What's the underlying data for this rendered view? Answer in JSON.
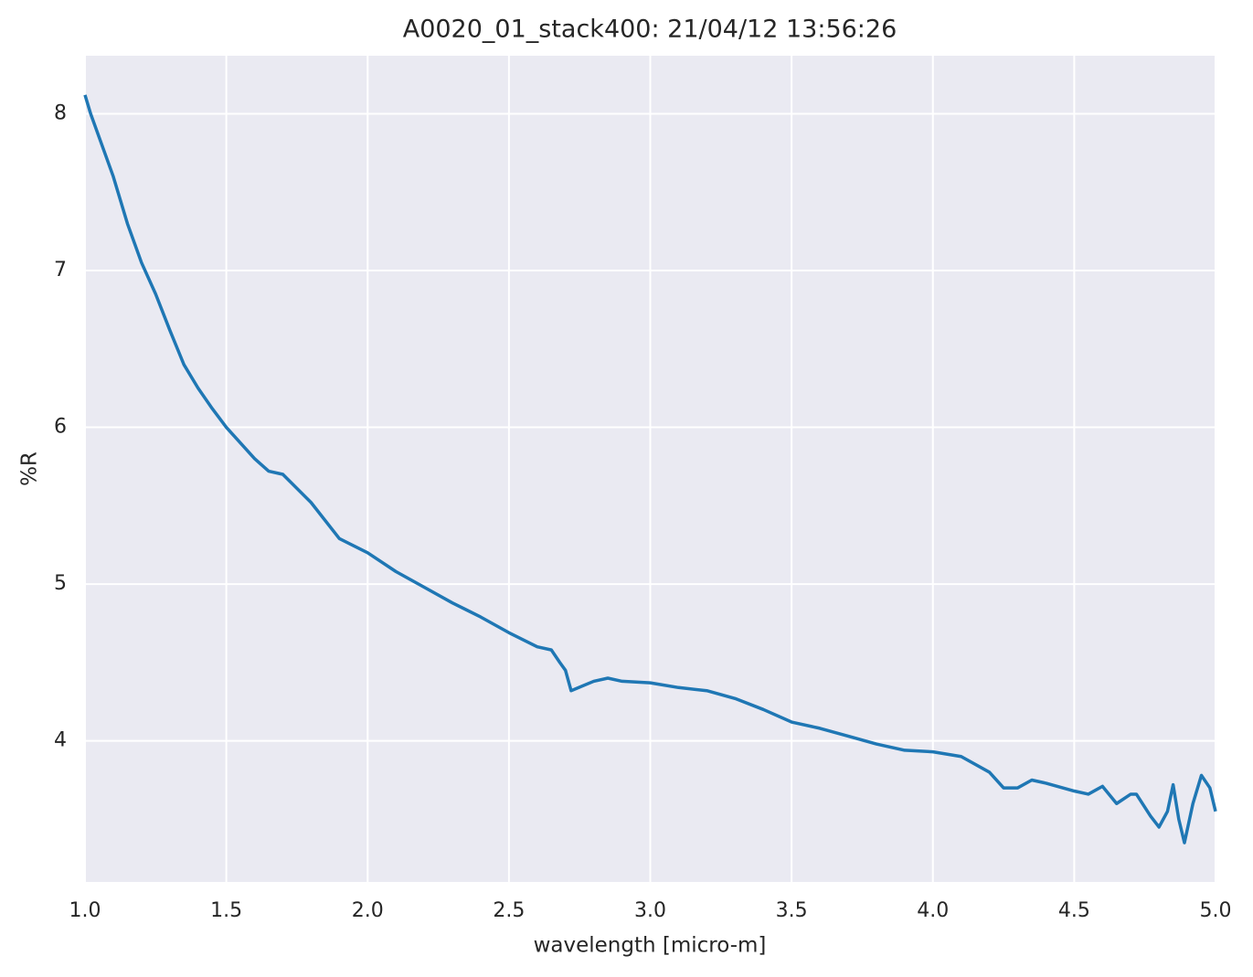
{
  "chart_data": {
    "type": "line",
    "title": "A0020_01_stack400:  21/04/12 13:56:26",
    "xlabel": "wavelength [micro-m]",
    "ylabel": "%R",
    "x": [
      1.0,
      1.02,
      1.05,
      1.1,
      1.15,
      1.2,
      1.25,
      1.3,
      1.35,
      1.4,
      1.45,
      1.5,
      1.6,
      1.65,
      1.7,
      1.8,
      1.9,
      2.0,
      2.1,
      2.2,
      2.3,
      2.4,
      2.5,
      2.6,
      2.65,
      2.68,
      2.7,
      2.72,
      2.8,
      2.85,
      2.9,
      3.0,
      3.1,
      3.2,
      3.3,
      3.4,
      3.5,
      3.6,
      3.7,
      3.8,
      3.9,
      4.0,
      4.1,
      4.2,
      4.25,
      4.3,
      4.35,
      4.4,
      4.5,
      4.55,
      4.6,
      4.65,
      4.7,
      4.72,
      4.77,
      4.8,
      4.83,
      4.85,
      4.87,
      4.89,
      4.92,
      4.95,
      4.98,
      5.0
    ],
    "values": [
      8.12,
      8.0,
      7.85,
      7.6,
      7.3,
      7.05,
      6.85,
      6.62,
      6.4,
      6.25,
      6.12,
      6.0,
      5.8,
      5.72,
      5.7,
      5.52,
      5.29,
      5.2,
      5.08,
      4.98,
      4.88,
      4.79,
      4.69,
      4.6,
      4.58,
      4.5,
      4.45,
      4.32,
      4.38,
      4.4,
      4.38,
      4.37,
      4.34,
      4.32,
      4.27,
      4.2,
      4.12,
      4.08,
      4.03,
      3.98,
      3.94,
      3.93,
      3.9,
      3.8,
      3.7,
      3.7,
      3.75,
      3.73,
      3.68,
      3.66,
      3.71,
      3.6,
      3.66,
      3.66,
      3.52,
      3.45,
      3.55,
      3.72,
      3.5,
      3.35,
      3.6,
      3.78,
      3.7,
      3.55
    ],
    "color": "#1f77b4",
    "xlim": [
      1.0,
      5.0
    ],
    "ylim": [
      3.1,
      8.37
    ],
    "xticks": [
      {
        "value": 1,
        "label": "1.0"
      },
      1.5,
      {
        "value": 2,
        "label": "2.0"
      },
      2.5,
      {
        "value": 3,
        "label": "3.0"
      },
      3.5,
      {
        "value": 4,
        "label": "4.0"
      },
      4.5,
      {
        "value": 5,
        "label": "5.0"
      }
    ],
    "yticks": [
      4,
      5,
      6,
      7,
      8
    ],
    "grid": true
  }
}
